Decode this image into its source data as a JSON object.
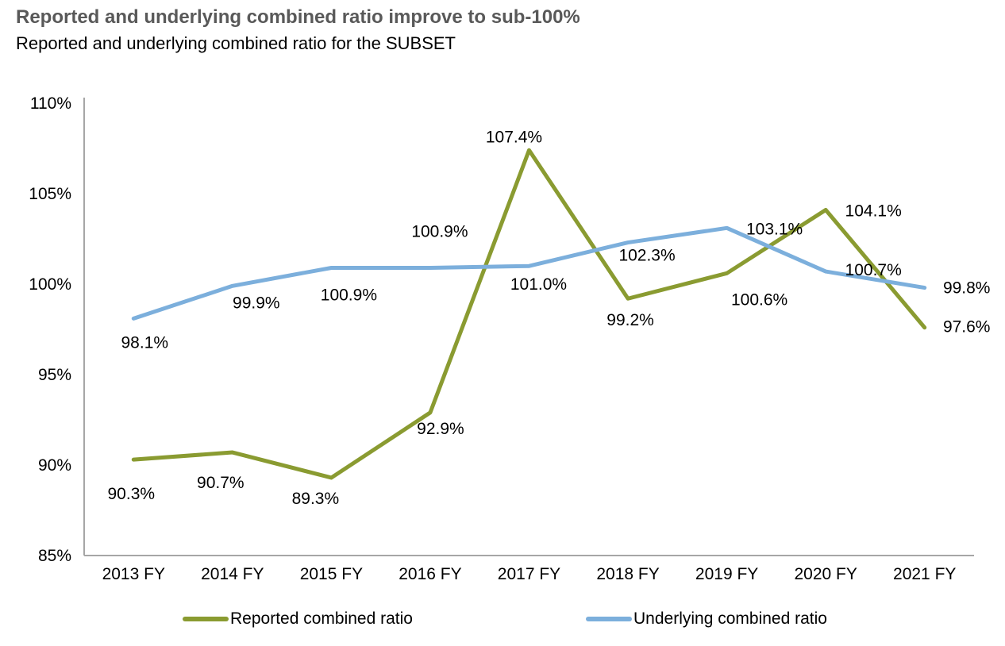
{
  "header": {
    "title": "Reported and underlying combined ratio improve to sub-100%",
    "subtitle": "Reported and underlying combined ratio for the SUBSET"
  },
  "colors": {
    "title_text": "#595959",
    "body_text": "#000000",
    "axis_line": "#a6a6a6",
    "reported_series": "#8A9B31",
    "underlying_series": "#7CAFDC"
  },
  "chart_data": {
    "type": "line",
    "title": "Reported and underlying combined ratio improve to sub-100%",
    "subtitle": "Reported and underlying combined ratio for the SUBSET",
    "categories": [
      "2013 FY",
      "2014 FY",
      "2015 FY",
      "2016 FY",
      "2017 FY",
      "2018 FY",
      "2019 FY",
      "2020 FY",
      "2021 FY"
    ],
    "xlabel": "",
    "ylabel": "",
    "ylim": [
      85,
      110
    ],
    "y_tick_values": [
      85,
      90,
      95,
      100,
      105,
      110
    ],
    "y_tick_labels": [
      "85%",
      "90%",
      "95%",
      "100%",
      "105%",
      "110%"
    ],
    "grid": false,
    "legend_position": "bottom",
    "series": [
      {
        "name": "Reported combined ratio",
        "color": "#8A9B31",
        "values": [
          90.3,
          90.7,
          89.3,
          92.9,
          107.4,
          99.2,
          100.6,
          104.1,
          97.6
        ],
        "labels": [
          "90.3%",
          "90.7%",
          "89.3%",
          "92.9%",
          "107.4%",
          "99.2%",
          "100.6%",
          "104.1%",
          "97.6%"
        ],
        "label_offsets": [
          [
            -3,
            43
          ],
          [
            -15,
            38
          ],
          [
            -20,
            26
          ],
          [
            13,
            20
          ],
          [
            -19,
            -17
          ],
          [
            3,
            27
          ],
          [
            41,
            33
          ],
          [
            60,
            1
          ],
          [
            53,
            -1
          ]
        ]
      },
      {
        "name": "Underlying combined ratio",
        "color": "#7CAFDC",
        "values": [
          98.1,
          99.9,
          100.9,
          100.9,
          101.0,
          102.3,
          103.1,
          100.7,
          99.8
        ],
        "labels": [
          "98.1%",
          "99.9%",
          "100.9%",
          "100.9%",
          "101.0%",
          "102.3%",
          "103.1%",
          "100.7%",
          "99.8%"
        ],
        "label_offsets": [
          [
            14,
            30
          ],
          [
            30,
            21
          ],
          [
            22,
            34
          ],
          [
            12,
            -46
          ],
          [
            12,
            23
          ],
          [
            24,
            16
          ],
          [
            60,
            1
          ],
          [
            60,
            -2
          ],
          [
            53,
            0
          ]
        ]
      }
    ]
  }
}
